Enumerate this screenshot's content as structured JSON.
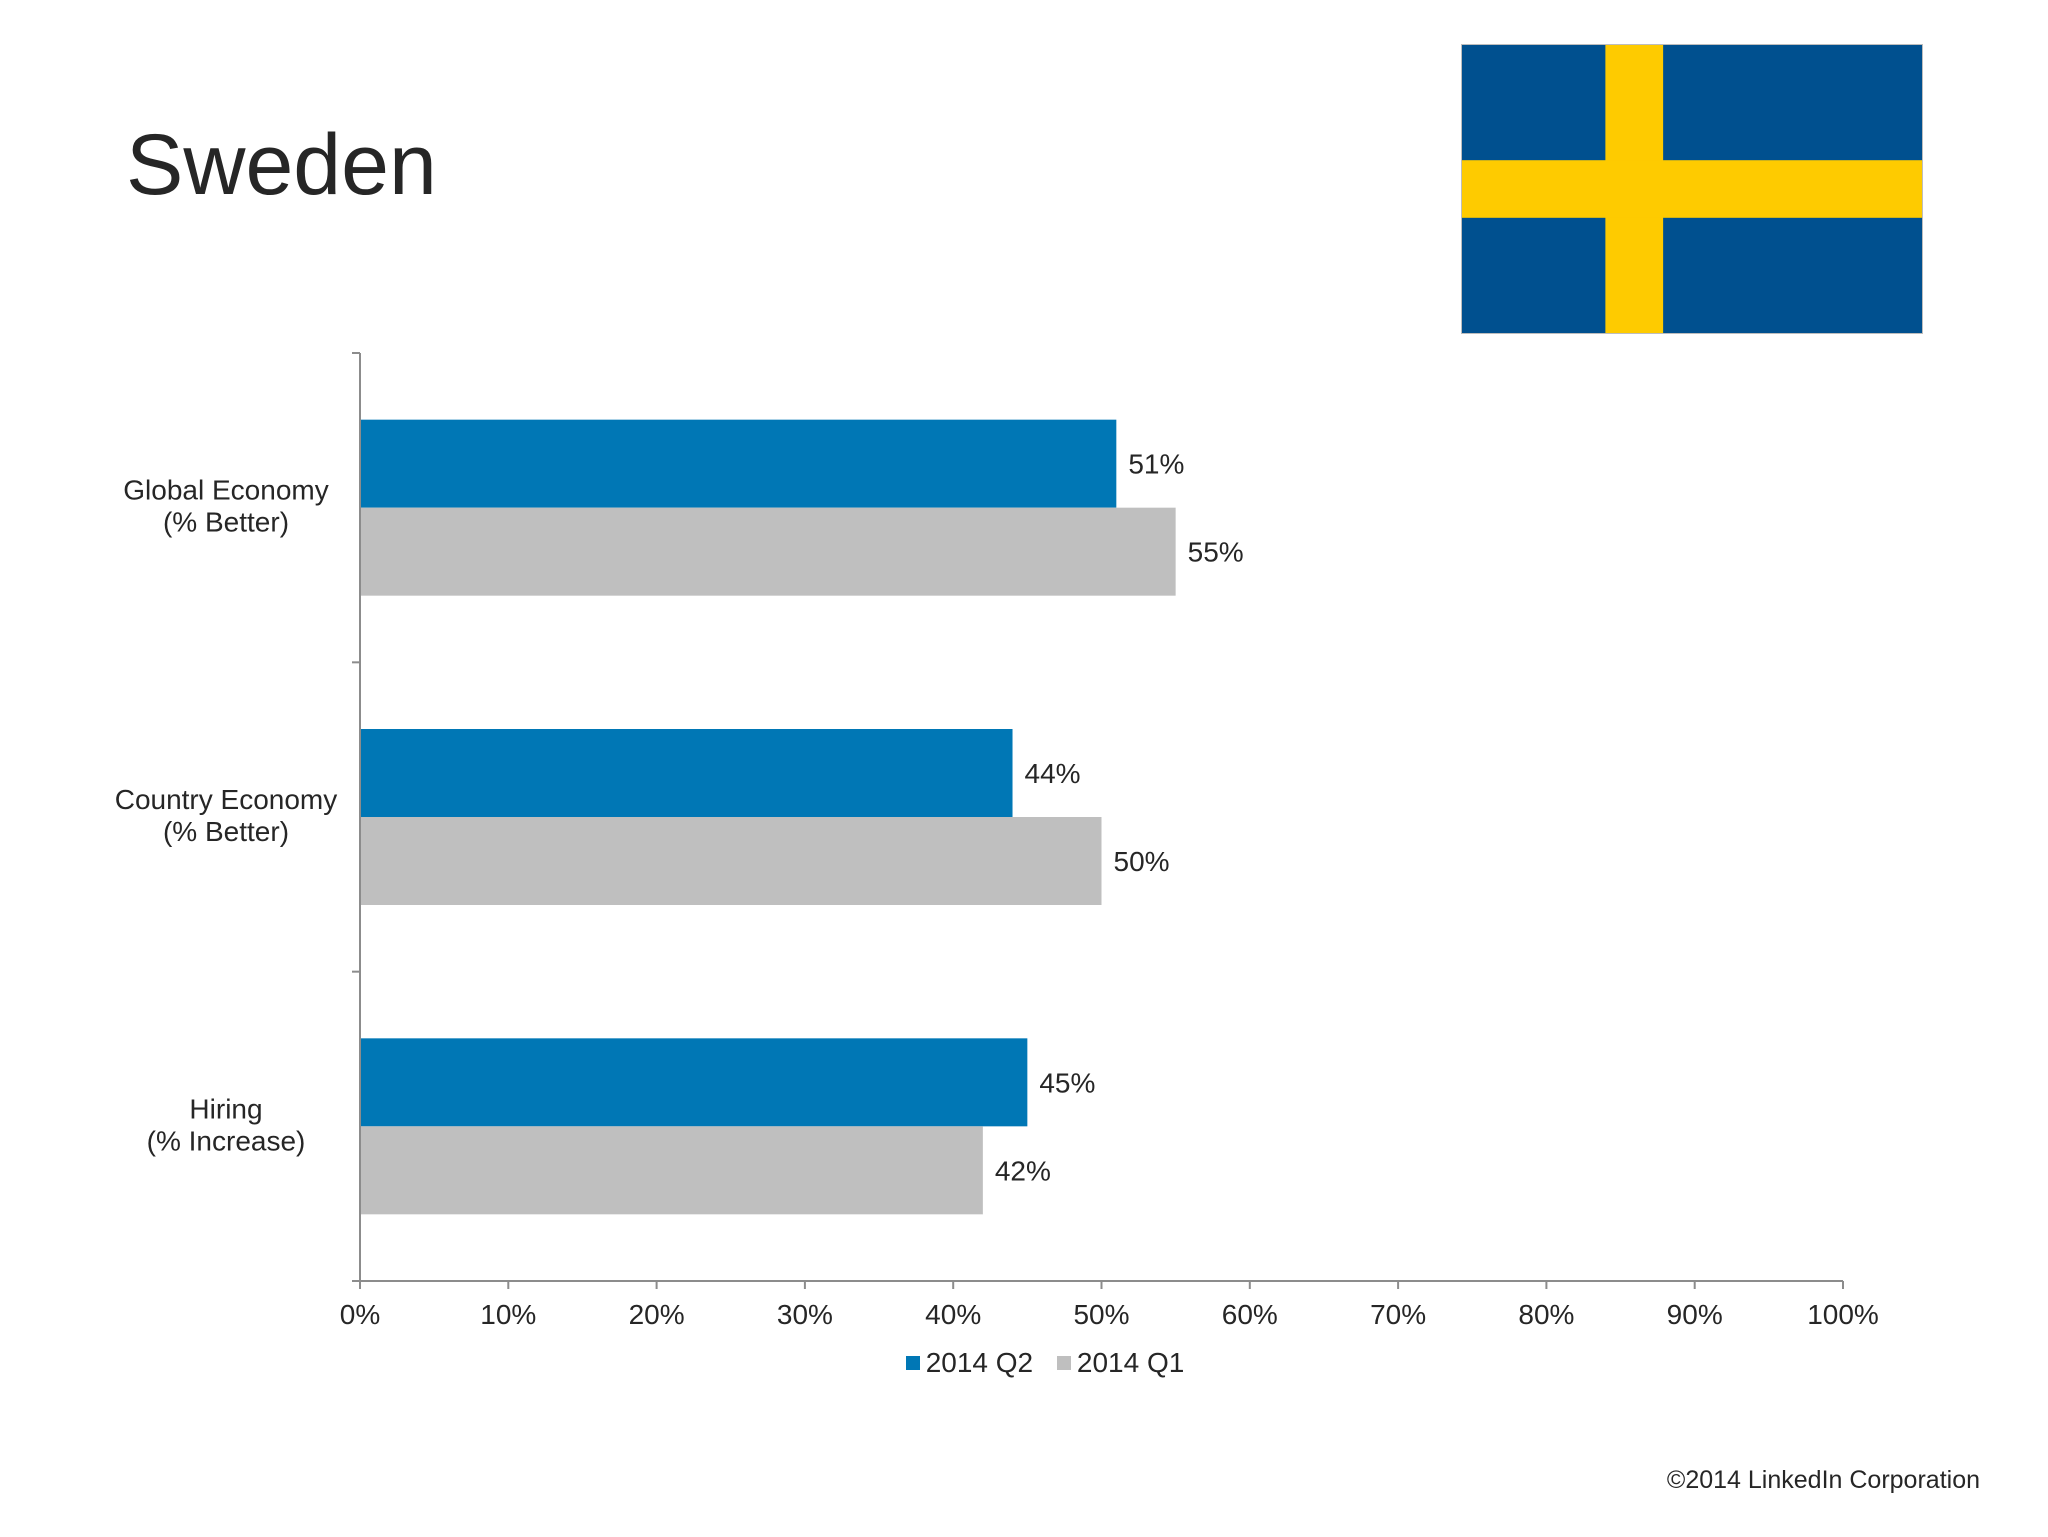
{
  "page": {
    "title": "Sweden",
    "copyright": "©2014 LinkedIn Corporation"
  },
  "flag": {
    "icon": "sweden-flag-icon",
    "blue": "#00508f",
    "yellow": "#fecb00"
  },
  "chart_data": {
    "type": "bar",
    "orientation": "horizontal",
    "categories": [
      [
        "Global Economy",
        "(% Better)"
      ],
      [
        "Country Economy",
        "(% Better)"
      ],
      [
        "Hiring",
        "(% Increase)"
      ]
    ],
    "series": [
      {
        "name": "2014 Q2",
        "color": "#0077b5",
        "values": [
          51,
          44,
          45
        ],
        "labels": [
          "51%",
          "44%",
          "45%"
        ]
      },
      {
        "name": "2014 Q1",
        "color": "#bfbfbf",
        "values": [
          55,
          50,
          42
        ],
        "labels": [
          "55%",
          "50%",
          "42%"
        ]
      }
    ],
    "xlim": [
      0,
      100
    ],
    "xticks": [
      0,
      10,
      20,
      30,
      40,
      50,
      60,
      70,
      80,
      90,
      100
    ],
    "xtick_labels": [
      "0%",
      "10%",
      "20%",
      "30%",
      "40%",
      "50%",
      "60%",
      "70%",
      "80%",
      "90%",
      "100%"
    ],
    "title": "",
    "xlabel": "",
    "ylabel": "",
    "grid": false,
    "legend_position": "bottom"
  }
}
